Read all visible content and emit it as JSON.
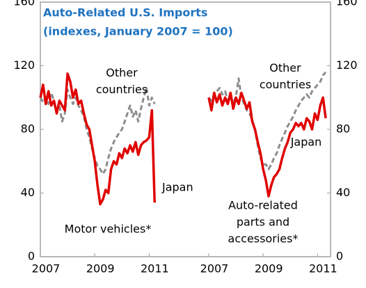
{
  "chart_data": [
    {
      "type": "line",
      "title": "Auto-Related U.S. Imports",
      "subtitle": "(indexes, January 2007 = 100)",
      "label": [
        "Motor vehicles*"
      ],
      "x": [
        2007.0,
        2007.1,
        2007.2,
        2007.3,
        2007.4,
        2007.5,
        2007.6,
        2007.7,
        2007.8,
        2007.9,
        2008.0,
        2008.1,
        2008.2,
        2008.3,
        2008.4,
        2008.5,
        2008.6,
        2008.7,
        2008.8,
        2008.9,
        2009.0,
        2009.1,
        2009.2,
        2009.3,
        2009.4,
        2009.5,
        2009.6,
        2009.7,
        2009.8,
        2009.9,
        2010.0,
        2010.1,
        2010.2,
        2010.3,
        2010.4,
        2010.5,
        2010.6,
        2010.7,
        2010.8,
        2010.9,
        2011.0,
        2011.1,
        2011.2
      ],
      "series": [
        {
          "name": "Other countries",
          "color": "#8c8c8c",
          "dashed": true,
          "values": [
            100,
            97,
            100,
            96,
            103,
            98,
            92,
            95,
            85,
            90,
            105,
            100,
            96,
            100,
            95,
            92,
            88,
            80,
            75,
            68,
            62,
            57,
            55,
            52,
            55,
            62,
            68,
            72,
            75,
            78,
            80,
            85,
            90,
            95,
            88,
            92,
            85,
            93,
            100,
            106,
            95,
            100,
            96
          ]
        },
        {
          "name": "Japan",
          "color": "#e00000",
          "dashed": false,
          "values": [
            100,
            108,
            96,
            104,
            95,
            98,
            90,
            98,
            95,
            92,
            115,
            110,
            100,
            105,
            96,
            98,
            90,
            83,
            80,
            70,
            60,
            45,
            33,
            36,
            42,
            40,
            55,
            60,
            58,
            65,
            62,
            68,
            65,
            70,
            66,
            72,
            64,
            70,
            72,
            73,
            75,
            92,
            34
          ]
        }
      ],
      "xlim": [
        2007,
        2011.4
      ],
      "xticks": [
        2007,
        2009,
        2011
      ],
      "ylim": [
        0,
        160
      ],
      "yticks": [
        0,
        40,
        80,
        120,
        160
      ]
    },
    {
      "type": "line",
      "label": [
        "Auto-related",
        "parts and",
        "accessories*"
      ],
      "x": [
        2007.0,
        2007.1,
        2007.2,
        2007.3,
        2007.4,
        2007.5,
        2007.6,
        2007.7,
        2007.8,
        2007.9,
        2008.0,
        2008.1,
        2008.2,
        2008.3,
        2008.4,
        2008.5,
        2008.6,
        2008.7,
        2008.8,
        2008.9,
        2009.0,
        2009.1,
        2009.2,
        2009.3,
        2009.4,
        2009.5,
        2009.6,
        2009.7,
        2009.8,
        2009.9,
        2010.0,
        2010.1,
        2010.2,
        2010.3,
        2010.4,
        2010.5,
        2010.6,
        2010.7,
        2010.8,
        2010.9,
        2011.0,
        2011.1,
        2011.2,
        2011.3
      ],
      "series": [
        {
          "name": "Other countries",
          "color": "#8c8c8c",
          "dashed": true,
          "values": [
            100,
            98,
            102,
            104,
            106,
            102,
            104,
            98,
            100,
            96,
            101,
            112,
            100,
            96,
            92,
            90,
            86,
            80,
            70,
            62,
            58,
            58,
            55,
            58,
            62,
            65,
            70,
            74,
            78,
            82,
            85,
            88,
            92,
            95,
            98,
            100,
            102,
            100,
            104,
            106,
            108,
            110,
            114,
            116
          ]
        },
        {
          "name": "Japan",
          "color": "#e00000",
          "dashed": false,
          "values": [
            100,
            92,
            103,
            97,
            102,
            95,
            100,
            96,
            103,
            93,
            100,
            96,
            103,
            98,
            93,
            97,
            85,
            80,
            72,
            65,
            55,
            48,
            38,
            45,
            50,
            52,
            55,
            62,
            68,
            72,
            78,
            80,
            84,
            82,
            84,
            80,
            87,
            85,
            80,
            90,
            86,
            95,
            100,
            87
          ]
        }
      ],
      "xlim": [
        2007,
        2011.4
      ],
      "xticks": [
        2007,
        2009,
        2011
      ],
      "ylim": [
        0,
        160
      ],
      "yticks": [
        0,
        40,
        80,
        120,
        160
      ]
    }
  ]
}
